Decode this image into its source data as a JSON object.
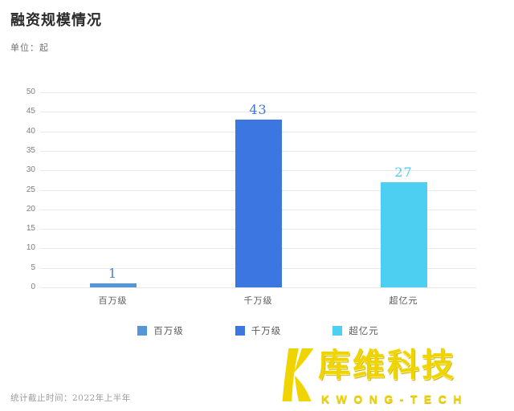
{
  "header": {
    "title": "融资规模情况",
    "unit_label": "单位：起"
  },
  "chart_data": {
    "type": "bar",
    "title": "融资规模情况",
    "unit": "单位：起",
    "categories": [
      "百万级",
      "千万级",
      "超亿元"
    ],
    "values": [
      1,
      43,
      27
    ],
    "bar_colors": [
      "#5596d8",
      "#3c76e1",
      "#4ccff0"
    ],
    "value_label_colors": [
      "#4a7fd4",
      "#4176d6",
      "#4cc9ee"
    ],
    "ylim": [
      0,
      50
    ],
    "yticks": [
      0,
      5,
      10,
      15,
      20,
      25,
      30,
      35,
      40,
      45,
      50
    ],
    "grid": true,
    "legend_position": "bottom"
  },
  "legend": {
    "items": [
      {
        "label": "百万级",
        "color": "#5596d8"
      },
      {
        "label": "千万级",
        "color": "#3c76e1"
      },
      {
        "label": "超亿元",
        "color": "#4ccff0"
      }
    ]
  },
  "footer": {
    "note": "统计截止时间：2022年上半年"
  },
  "logo": {
    "cn_name": "库维科技",
    "en_name": "KWONG-TECH",
    "color": "#f0d400"
  }
}
